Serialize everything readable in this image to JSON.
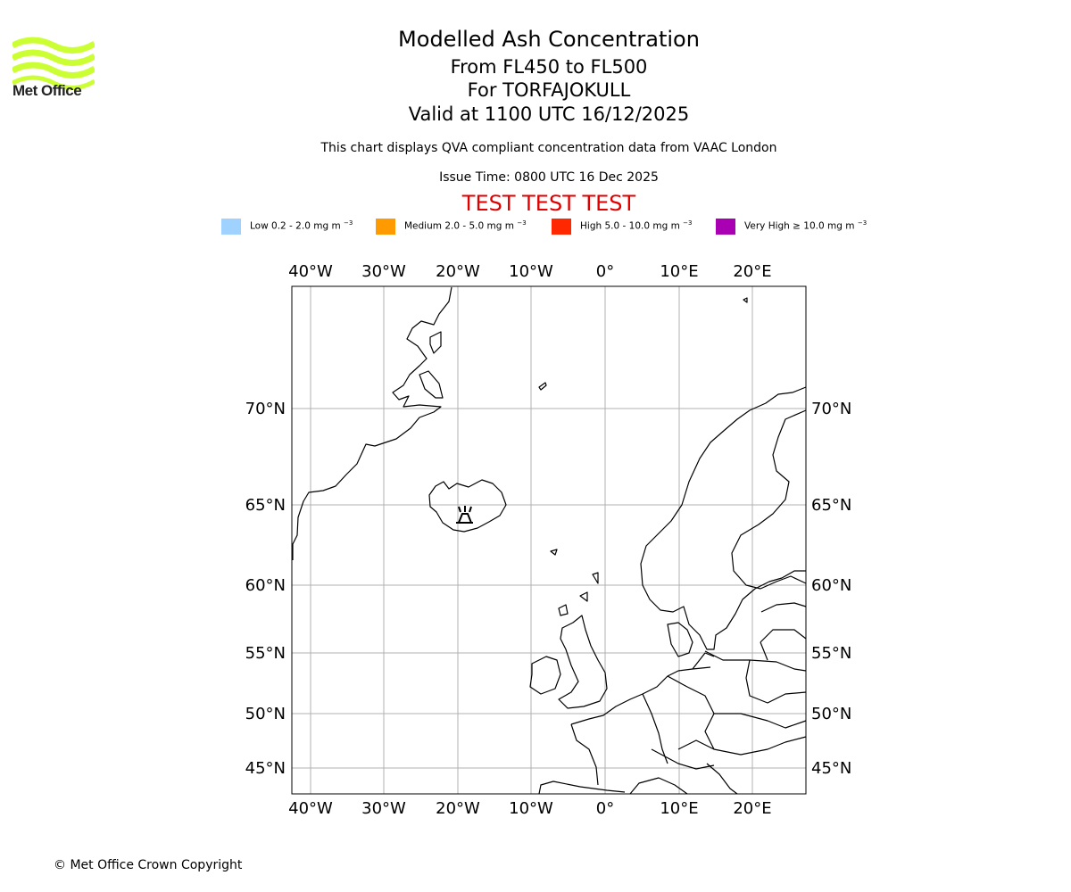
{
  "logo": {
    "text": "Met Office",
    "accent": "#ccff33"
  },
  "header": {
    "title": "Modelled Ash Concentration",
    "level": "From FL450 to FL500",
    "volcano": "For TORFAJOKULL",
    "valid": "Valid at 1100 UTC 16/12/2025",
    "info": "This chart displays QVA compliant concentration data from VAAC London",
    "issue": "Issue Time: 0800 UTC 16 Dec 2025",
    "test_banner": "TEST TEST TEST",
    "test_color": "#e00000"
  },
  "legend": [
    {
      "label": "Low 0.2 - 2.0 mg m",
      "color": "#a0d2ff"
    },
    {
      "label": "Medium 2.0 - 5.0 mg m",
      "color": "#ff9a00"
    },
    {
      "label": "High 5.0 - 10.0 mg m",
      "color": "#ff2800"
    },
    {
      "label": "Very High ≥ 10.0 mg m",
      "color": "#aa00b4"
    }
  ],
  "legend_unit_exp": "−3",
  "map": {
    "lon_labels": [
      "40°W",
      "30°W",
      "20°W",
      "10°W",
      "0°",
      "10°E",
      "20°E"
    ],
    "lat_labels": [
      "70°N",
      "65°N",
      "60°N",
      "55°N",
      "50°N",
      "45°N"
    ],
    "volcano_icon": "volcano-icon"
  },
  "footer": {
    "copyright": "© Met Office Crown Copyright"
  }
}
